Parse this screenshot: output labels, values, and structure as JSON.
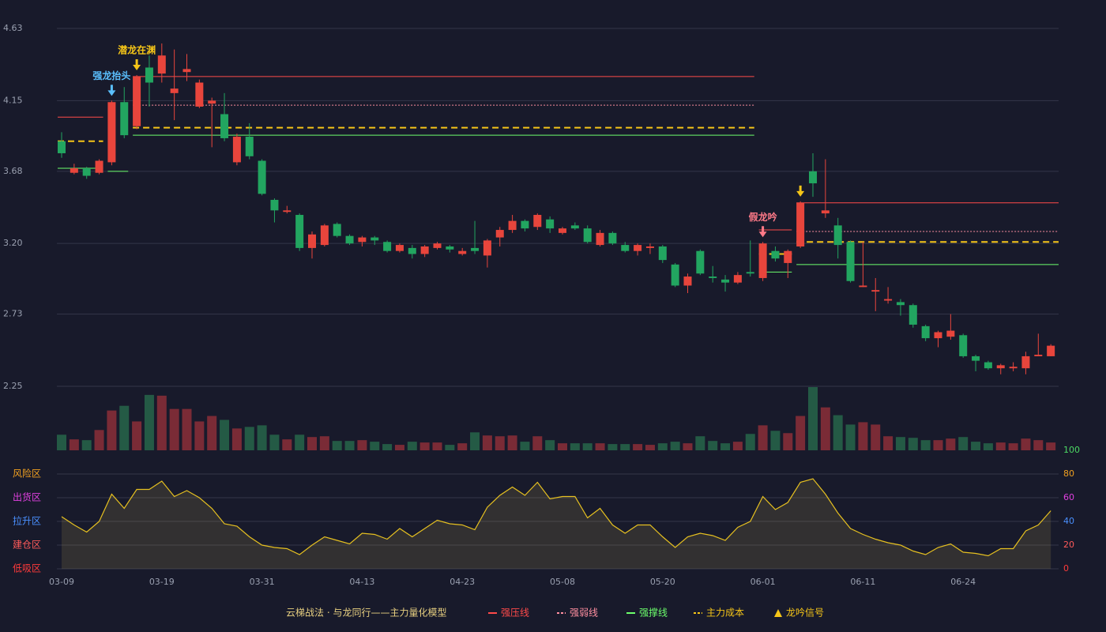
{
  "chart_data": {
    "type": "candlestick",
    "categories": [
      "03-09",
      null,
      null,
      null,
      null,
      null,
      null,
      null,
      "03-19",
      null,
      null,
      null,
      null,
      null,
      null,
      null,
      "03-31",
      null,
      null,
      null,
      null,
      null,
      null,
      null,
      "04-13",
      null,
      null,
      null,
      null,
      null,
      null,
      null,
      "04-23",
      null,
      null,
      null,
      null,
      null,
      null,
      null,
      "05-08",
      null,
      null,
      null,
      null,
      null,
      null,
      null,
      "05-20",
      null,
      null,
      null,
      null,
      null,
      null,
      null,
      "06-01",
      null,
      null,
      null,
      null,
      null,
      null,
      null,
      "06-11",
      null,
      null,
      null,
      null,
      null,
      null,
      null,
      "06-24",
      null,
      null,
      null,
      null,
      null,
      null,
      null
    ],
    "open": [
      3.88,
      3.67,
      3.7,
      3.67,
      3.74,
      4.14,
      3.98,
      4.37,
      4.33,
      4.2,
      4.34,
      4.11,
      4.13,
      4.06,
      3.74,
      3.91,
      3.75,
      3.49,
      3.41,
      3.39,
      3.17,
      3.19,
      3.33,
      3.25,
      3.21,
      3.24,
      3.21,
      3.15,
      3.17,
      3.13,
      3.17,
      3.18,
      3.13,
      3.17,
      3.12,
      3.24,
      3.29,
      3.35,
      3.31,
      3.36,
      3.27,
      3.32,
      3.3,
      3.19,
      3.27,
      3.19,
      3.15,
      3.17,
      3.18,
      3.06,
      2.92,
      3.15,
      2.98,
      2.96,
      2.94,
      3.01,
      2.97,
      3.15,
      3.07,
      3.18,
      3.68,
      3.4,
      3.32,
      3.21,
      2.91,
      2.88,
      2.82,
      2.81,
      2.79,
      2.65,
      2.57,
      2.58,
      2.59,
      2.45,
      2.41,
      2.37,
      2.37,
      2.37,
      2.45,
      2.45
    ],
    "high": [
      3.94,
      3.73,
      3.71,
      3.76,
      4.15,
      4.24,
      4.32,
      4.45,
      4.53,
      4.49,
      4.46,
      4.29,
      4.17,
      4.2,
      3.93,
      4.0,
      3.76,
      3.5,
      3.45,
      3.4,
      3.28,
      3.33,
      3.34,
      3.26,
      3.25,
      3.25,
      3.22,
      3.2,
      3.19,
      3.19,
      3.21,
      3.19,
      3.17,
      3.35,
      3.23,
      3.31,
      3.39,
      3.36,
      3.4,
      3.38,
      3.31,
      3.34,
      3.32,
      3.29,
      3.28,
      3.21,
      3.2,
      3.2,
      3.19,
      3.07,
      3.0,
      3.16,
      3.05,
      2.99,
      3.01,
      3.22,
      3.21,
      3.18,
      3.16,
      3.48,
      3.8,
      3.76,
      3.37,
      3.22,
      3.21,
      2.97,
      2.91,
      2.83,
      2.8,
      2.66,
      2.62,
      2.73,
      2.6,
      2.46,
      2.42,
      2.4,
      2.41,
      2.48,
      2.6,
      2.53
    ],
    "low": [
      3.77,
      3.66,
      3.63,
      3.66,
      3.72,
      3.9,
      3.96,
      4.11,
      4.27,
      4.02,
      4.28,
      4.1,
      3.84,
      3.88,
      3.72,
      3.76,
      3.52,
      3.34,
      3.4,
      3.15,
      3.1,
      3.18,
      3.24,
      3.19,
      3.18,
      3.19,
      3.14,
      3.14,
      3.1,
      3.11,
      3.16,
      3.14,
      3.12,
      3.13,
      3.04,
      3.18,
      3.27,
      3.28,
      3.29,
      3.27,
      3.26,
      3.29,
      3.2,
      3.18,
      3.19,
      3.14,
      3.12,
      3.13,
      3.07,
      2.91,
      2.87,
      2.99,
      2.94,
      2.88,
      2.93,
      2.98,
      2.95,
      3.08,
      2.97,
      3.17,
      3.51,
      3.37,
      3.1,
      2.94,
      2.91,
      2.75,
      2.8,
      2.72,
      2.64,
      2.55,
      2.51,
      2.56,
      2.44,
      2.35,
      2.36,
      2.33,
      2.35,
      2.33,
      2.45,
      2.45
    ],
    "close": [
      3.8,
      3.7,
      3.65,
      3.75,
      4.14,
      3.92,
      4.31,
      4.27,
      4.45,
      4.23,
      4.36,
      4.27,
      4.15,
      3.9,
      3.91,
      3.78,
      3.53,
      3.42,
      3.42,
      3.17,
      3.26,
      3.32,
      3.25,
      3.2,
      3.24,
      3.22,
      3.15,
      3.19,
      3.13,
      3.18,
      3.2,
      3.16,
      3.15,
      3.15,
      3.22,
      3.29,
      3.35,
      3.3,
      3.39,
      3.3,
      3.3,
      3.3,
      3.21,
      3.27,
      3.2,
      3.15,
      3.19,
      3.18,
      3.09,
      2.92,
      2.98,
      3.0,
      2.97,
      2.94,
      2.99,
      3.0,
      3.2,
      3.1,
      3.15,
      3.47,
      3.6,
      3.42,
      3.19,
      2.95,
      2.92,
      2.89,
      2.83,
      2.79,
      2.66,
      2.57,
      2.61,
      2.62,
      2.45,
      2.42,
      2.37,
      2.39,
      2.38,
      2.45,
      2.46,
      2.52
    ],
    "up_color": "#e8453c",
    "down_color": "#22a560",
    "ylim": [
      2.25,
      4.63
    ],
    "yticks": [
      4.63,
      4.15,
      3.68,
      {
        "value": 3.2,
        "label": "3.20"
      },
      2.73,
      2.25
    ],
    "grid": true,
    "volume": {
      "ylim": [
        0,
        82
      ],
      "up_color": "#7a2b36",
      "down_color": "#245a45",
      "values": [
        20,
        14,
        13,
        26,
        51,
        57,
        37,
        71,
        70,
        53,
        53,
        37,
        44,
        39,
        28,
        30,
        32,
        20,
        14,
        20,
        17,
        18,
        12,
        12,
        13,
        11,
        8,
        7,
        11,
        10,
        10,
        7,
        9,
        23,
        19,
        18,
        19,
        11,
        18,
        13,
        9,
        9,
        9,
        9,
        8,
        8,
        8,
        7,
        9,
        11,
        9,
        18,
        12,
        9,
        11,
        21,
        32,
        25,
        22,
        44,
        81,
        55,
        45,
        33,
        36,
        33,
        18,
        17,
        16,
        13,
        13,
        15,
        17,
        11,
        9,
        10,
        9,
        15,
        13,
        10
      ]
    },
    "indicator": {
      "ylim": [
        0,
        100
      ],
      "color": "#e6c020",
      "yticks": [
        {
          "value": 100,
          "color": "#4cd964"
        },
        {
          "value": 80,
          "color": "#f0a020"
        },
        {
          "value": 60,
          "color": "#e040e0"
        },
        {
          "value": 40,
          "color": "#4a90ff"
        },
        {
          "value": 20,
          "color": "#ff5a5a"
        },
        {
          "value": 0,
          "color": "#ff3a3a"
        }
      ],
      "zones": [
        {
          "label": "风险区",
          "value": 80,
          "color": "#f0a020"
        },
        {
          "label": "出货区",
          "value": 60,
          "color": "#e040e0"
        },
        {
          "label": "拉升区",
          "value": 40,
          "color": "#4a90ff"
        },
        {
          "label": "建仓区",
          "value": 20,
          "color": "#ff5a5a"
        },
        {
          "label": "低吸区",
          "value": 0,
          "color": "#ff3a3a"
        }
      ],
      "values": [
        44,
        37,
        31,
        40,
        63,
        51,
        67,
        67,
        74,
        61,
        66,
        60,
        51,
        38,
        36,
        27,
        20,
        18,
        17,
        12,
        20,
        27,
        24,
        21,
        30,
        29,
        25,
        34,
        27,
        34,
        41,
        38,
        37,
        33,
        52,
        62,
        69,
        62,
        73,
        59,
        61,
        61,
        43,
        51,
        37,
        30,
        37,
        37,
        27,
        18,
        27,
        30,
        28,
        24,
        35,
        40,
        61,
        50,
        56,
        73,
        76,
        63,
        47,
        34,
        29,
        25,
        22,
        20,
        15,
        12,
        18,
        21,
        14,
        13,
        11,
        17,
        17,
        32,
        37,
        49
      ]
    },
    "legend": {
      "title": "云梯战法 · 与龙同行——主力量化模型",
      "items": [
        {
          "name": "强压线",
          "color": "#ff4a4a",
          "dash": false
        },
        {
          "name": "强弱线",
          "color": "#ff8fa0",
          "dash": true
        },
        {
          "name": "强撑线",
          "color": "#6cff6c",
          "dash": false
        },
        {
          "name": "主力成本",
          "color": "#f5c518",
          "dash": true
        }
      ],
      "signal": {
        "name": "龙吟信号",
        "color": "#f5c518"
      }
    },
    "levels": [
      {
        "style": 0,
        "price": 4.04,
        "from": 0,
        "to": 3
      },
      {
        "style": 3,
        "price": 3.88,
        "from": 0,
        "to": 3
      },
      {
        "style": 2,
        "price": 3.7,
        "from": 0,
        "to": 3
      },
      {
        "style": 2,
        "price": 3.68,
        "from": 4,
        "to": 5
      },
      {
        "style": 0,
        "price": 4.31,
        "from": 6,
        "to": 55
      },
      {
        "style": 1,
        "price": 4.12,
        "from": 6,
        "to": 55
      },
      {
        "style": 3,
        "price": 3.97,
        "from": 6,
        "to": 55
      },
      {
        "style": 2,
        "price": 3.92,
        "from": 6,
        "to": 55
      },
      {
        "style": 0,
        "price": 3.29,
        "from": 56,
        "to": 58
      },
      {
        "style": 3,
        "price": 3.13,
        "from": 56,
        "to": 58
      },
      {
        "style": 2,
        "price": 3.01,
        "from": 56,
        "to": 58
      },
      {
        "style": 0,
        "price": 3.47,
        "from": 59,
        "to": 79
      },
      {
        "style": 1,
        "price": 3.28,
        "from": 59,
        "to": 79
      },
      {
        "style": 3,
        "price": 3.21,
        "from": 59,
        "to": 79
      },
      {
        "style": 2,
        "price": 3.06,
        "from": 59,
        "to": 79
      }
    ],
    "signals": [
      {
        "index": 4,
        "label": "强龙抬头",
        "color": "#5bc0ff"
      },
      {
        "index": 6,
        "label": "潜龙在渊",
        "color": "#f5c518"
      },
      {
        "index": 56,
        "label": "假龙吟",
        "color": "#ff7a88"
      },
      {
        "index": 59,
        "color": "#f5c518"
      }
    ]
  }
}
